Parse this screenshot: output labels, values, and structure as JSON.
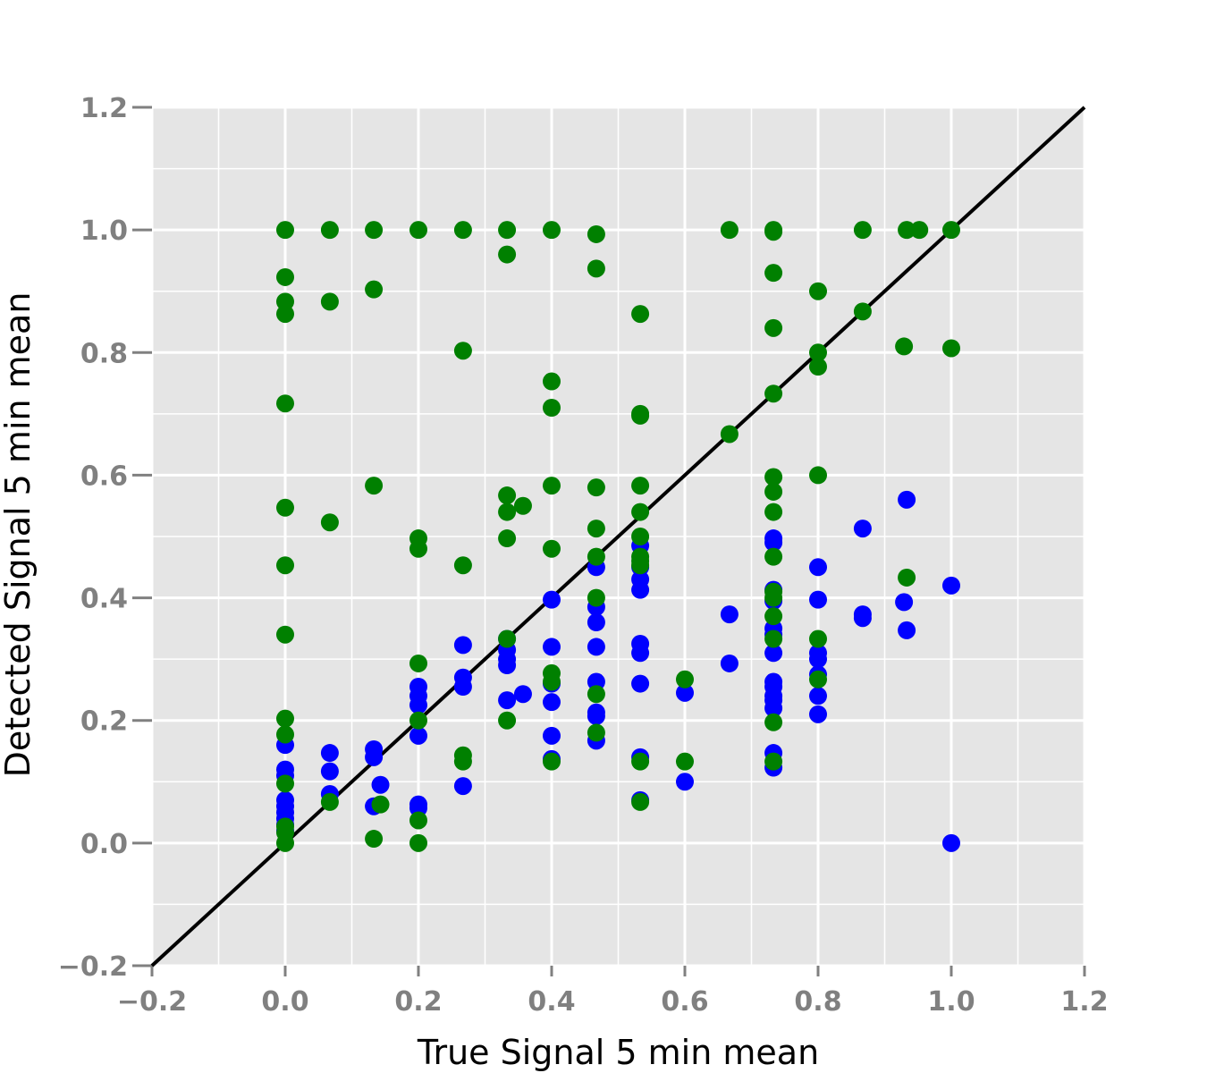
{
  "chart_data": {
    "type": "scatter",
    "title": "",
    "xlabel": "True Signal 5 min mean",
    "ylabel": "Detected Signal 5 min mean",
    "xlim": [
      -0.2,
      1.2
    ],
    "ylim": [
      -0.2,
      1.2
    ],
    "xticks": [
      "−0.2",
      "0.0",
      "0.2",
      "0.4",
      "0.6",
      "0.8",
      "1.0",
      "1.2"
    ],
    "yticks": [
      "−0.2",
      "0.0",
      "0.2",
      "0.4",
      "0.6",
      "0.8",
      "1.0",
      "1.2"
    ],
    "xtick_values": [
      -0.2,
      0,
      0.2,
      0.4,
      0.6,
      0.8,
      1.0,
      1.2
    ],
    "ytick_values": [
      -0.2,
      0,
      0.2,
      0.4,
      0.6,
      0.8,
      1.0,
      1.2
    ],
    "grid": true,
    "reference_line": {
      "x": [
        -0.2,
        1.2
      ],
      "y": [
        -0.2,
        1.2
      ],
      "color": "#000000"
    },
    "background_color": "#e5e5e5",
    "series": [
      {
        "color": "#0000ff",
        "points": [
          [
            0,
            0.16
          ],
          [
            0,
            0.12
          ],
          [
            0,
            0.11
          ],
          [
            0,
            0.07
          ],
          [
            0,
            0.06
          ],
          [
            0,
            0.05
          ],
          [
            0,
            0.04
          ],
          [
            0,
            0.03
          ],
          [
            0,
            0.02
          ],
          [
            0.067,
            0.147
          ],
          [
            0.067,
            0.117
          ],
          [
            0.067,
            0.08
          ],
          [
            0.133,
            0.153
          ],
          [
            0.133,
            0.14
          ],
          [
            0.133,
            0.06
          ],
          [
            0.143,
            0.095
          ],
          [
            0.2,
            0.255
          ],
          [
            0.2,
            0.24
          ],
          [
            0.2,
            0.225
          ],
          [
            0.2,
            0.175
          ],
          [
            0.2,
            0.063
          ],
          [
            0.2,
            0.057
          ],
          [
            0.267,
            0.323
          ],
          [
            0.267,
            0.27
          ],
          [
            0.267,
            0.255
          ],
          [
            0.267,
            0.093
          ],
          [
            0.333,
            0.333
          ],
          [
            0.333,
            0.315
          ],
          [
            0.333,
            0.3
          ],
          [
            0.333,
            0.29
          ],
          [
            0.333,
            0.233
          ],
          [
            0.357,
            0.243
          ],
          [
            0.4,
            0.397
          ],
          [
            0.4,
            0.32
          ],
          [
            0.4,
            0.26
          ],
          [
            0.4,
            0.23
          ],
          [
            0.4,
            0.175
          ],
          [
            0.4,
            0.137
          ],
          [
            0.467,
            0.45
          ],
          [
            0.467,
            0.385
          ],
          [
            0.467,
            0.36
          ],
          [
            0.467,
            0.32
          ],
          [
            0.467,
            0.263
          ],
          [
            0.467,
            0.213
          ],
          [
            0.467,
            0.207
          ],
          [
            0.467,
            0.167
          ],
          [
            0.533,
            0.485
          ],
          [
            0.533,
            0.45
          ],
          [
            0.533,
            0.43
          ],
          [
            0.533,
            0.413
          ],
          [
            0.533,
            0.325
          ],
          [
            0.533,
            0.31
          ],
          [
            0.533,
            0.26
          ],
          [
            0.533,
            0.14
          ],
          [
            0.533,
            0.07
          ],
          [
            0.6,
            0.245
          ],
          [
            0.6,
            0.1
          ],
          [
            0.667,
            0.373
          ],
          [
            0.667,
            0.293
          ],
          [
            0.733,
            0.497
          ],
          [
            0.733,
            0.49
          ],
          [
            0.733,
            0.413
          ],
          [
            0.733,
            0.395
          ],
          [
            0.733,
            0.35
          ],
          [
            0.733,
            0.34
          ],
          [
            0.733,
            0.31
          ],
          [
            0.733,
            0.263
          ],
          [
            0.733,
            0.255
          ],
          [
            0.733,
            0.24
          ],
          [
            0.733,
            0.233
          ],
          [
            0.733,
            0.22
          ],
          [
            0.733,
            0.147
          ],
          [
            0.733,
            0.123
          ],
          [
            0.8,
            0.45
          ],
          [
            0.8,
            0.397
          ],
          [
            0.8,
            0.31
          ],
          [
            0.8,
            0.3
          ],
          [
            0.8,
            0.275
          ],
          [
            0.8,
            0.24
          ],
          [
            0.8,
            0.21
          ],
          [
            0.867,
            0.513
          ],
          [
            0.867,
            0.373
          ],
          [
            0.867,
            0.367
          ],
          [
            0.933,
            0.56
          ],
          [
            0.929,
            0.393
          ],
          [
            0.933,
            0.347
          ],
          [
            1.0,
            0.42
          ],
          [
            1.0,
            0.0
          ]
        ]
      },
      {
        "color": "#008000",
        "points": [
          [
            0,
            1.0
          ],
          [
            0,
            0.923
          ],
          [
            0,
            0.883
          ],
          [
            0,
            0.863
          ],
          [
            0,
            0.717
          ],
          [
            0,
            0.547
          ],
          [
            0,
            0.453
          ],
          [
            0,
            0.34
          ],
          [
            0,
            0.203
          ],
          [
            0,
            0.177
          ],
          [
            0,
            0.097
          ],
          [
            0,
            0.027
          ],
          [
            0,
            0.017
          ],
          [
            0,
            0.0
          ],
          [
            0.067,
            1.0
          ],
          [
            0.067,
            0.883
          ],
          [
            0.067,
            0.523
          ],
          [
            0.067,
            0.067
          ],
          [
            0.133,
            1.0
          ],
          [
            0.133,
            0.903
          ],
          [
            0.133,
            0.583
          ],
          [
            0.133,
            0.007
          ],
          [
            0.143,
            0.063
          ],
          [
            0.2,
            1.0
          ],
          [
            0.2,
            0.497
          ],
          [
            0.2,
            0.48
          ],
          [
            0.2,
            0.293
          ],
          [
            0.2,
            0.2
          ],
          [
            0.2,
            0.037
          ],
          [
            0.2,
            0.0
          ],
          [
            0.267,
            1.0
          ],
          [
            0.267,
            0.803
          ],
          [
            0.267,
            0.453
          ],
          [
            0.267,
            0.143
          ],
          [
            0.267,
            0.133
          ],
          [
            0.333,
            1.0
          ],
          [
            0.333,
            0.96
          ],
          [
            0.333,
            0.567
          ],
          [
            0.333,
            0.54
          ],
          [
            0.333,
            0.497
          ],
          [
            0.333,
            0.333
          ],
          [
            0.333,
            0.2
          ],
          [
            0.357,
            0.55
          ],
          [
            0.4,
            1.0
          ],
          [
            0.4,
            0.753
          ],
          [
            0.4,
            0.71
          ],
          [
            0.4,
            0.583
          ],
          [
            0.4,
            0.48
          ],
          [
            0.4,
            0.277
          ],
          [
            0.4,
            0.263
          ],
          [
            0.4,
            0.133
          ],
          [
            0.467,
            0.993
          ],
          [
            0.467,
            0.937
          ],
          [
            0.467,
            0.58
          ],
          [
            0.467,
            0.513
          ],
          [
            0.467,
            0.467
          ],
          [
            0.467,
            0.4
          ],
          [
            0.467,
            0.243
          ],
          [
            0.467,
            0.18
          ],
          [
            0.533,
            0.863
          ],
          [
            0.533,
            0.7
          ],
          [
            0.533,
            0.697
          ],
          [
            0.533,
            0.583
          ],
          [
            0.533,
            0.54
          ],
          [
            0.533,
            0.5
          ],
          [
            0.533,
            0.467
          ],
          [
            0.533,
            0.46
          ],
          [
            0.533,
            0.453
          ],
          [
            0.533,
            0.133
          ],
          [
            0.533,
            0.067
          ],
          [
            0.6,
            0.267
          ],
          [
            0.6,
            0.133
          ],
          [
            0.667,
            1.0
          ],
          [
            0.667,
            0.667
          ],
          [
            0.733,
            1.0
          ],
          [
            0.733,
            0.997
          ],
          [
            0.733,
            0.93
          ],
          [
            0.733,
            0.84
          ],
          [
            0.733,
            0.733
          ],
          [
            0.733,
            0.597
          ],
          [
            0.733,
            0.573
          ],
          [
            0.733,
            0.54
          ],
          [
            0.733,
            0.467
          ],
          [
            0.733,
            0.41
          ],
          [
            0.733,
            0.4
          ],
          [
            0.733,
            0.37
          ],
          [
            0.733,
            0.333
          ],
          [
            0.733,
            0.197
          ],
          [
            0.733,
            0.133
          ],
          [
            0.8,
            0.9
          ],
          [
            0.8,
            0.8
          ],
          [
            0.8,
            0.777
          ],
          [
            0.8,
            0.6
          ],
          [
            0.8,
            0.333
          ],
          [
            0.8,
            0.267
          ],
          [
            0.867,
            1.0
          ],
          [
            0.867,
            0.867
          ],
          [
            0.933,
            1.0
          ],
          [
            0.952,
            1.0
          ],
          [
            0.929,
            0.81
          ],
          [
            0.933,
            0.433
          ],
          [
            1.0,
            1.0
          ],
          [
            1.0,
            0.807
          ]
        ]
      }
    ]
  }
}
